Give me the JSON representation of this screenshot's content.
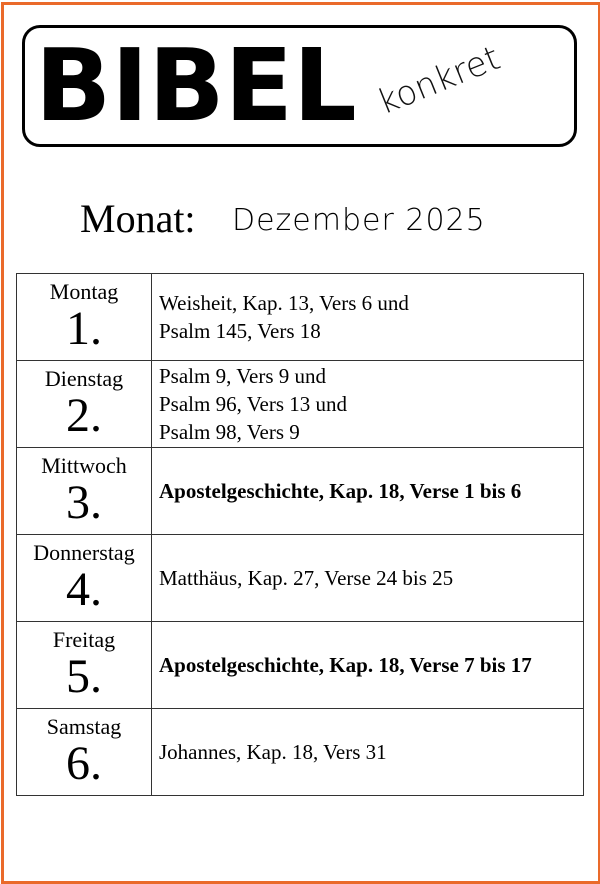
{
  "logo": {
    "title": "BIBEL",
    "subtitle": "konkret"
  },
  "header": {
    "month_label": "Monat:",
    "month_value": "Dezember 2025"
  },
  "colors": {
    "border": "#ea6a2a"
  },
  "days": [
    {
      "weekday": "Montag",
      "date": "1.",
      "lines": [
        "Weisheit, Kap. 13, Vers 6  und",
        "Psalm 145, Vers 18"
      ],
      "bold": false
    },
    {
      "weekday": "Dienstag",
      "date": "2.",
      "lines": [
        "Psalm 9, Vers 9  und",
        "Psalm 96, Vers 13  und",
        "Psalm 98, Vers 9"
      ],
      "bold": false
    },
    {
      "weekday": "Mittwoch",
      "date": "3.",
      "lines": [
        "Apostelgeschichte, Kap. 18, Verse 1 bis 6"
      ],
      "bold": true
    },
    {
      "weekday": "Donnerstag",
      "date": "4.",
      "lines": [
        "Matthäus, Kap. 27, Verse 24 bis 25"
      ],
      "bold": false
    },
    {
      "weekday": "Freitag",
      "date": "5.",
      "lines": [
        "Apostelgeschichte, Kap. 18, Verse 7 bis 17"
      ],
      "bold": true
    },
    {
      "weekday": "Samstag",
      "date": "6.",
      "lines": [
        "Johannes, Kap. 18, Vers 31"
      ],
      "bold": false
    }
  ]
}
